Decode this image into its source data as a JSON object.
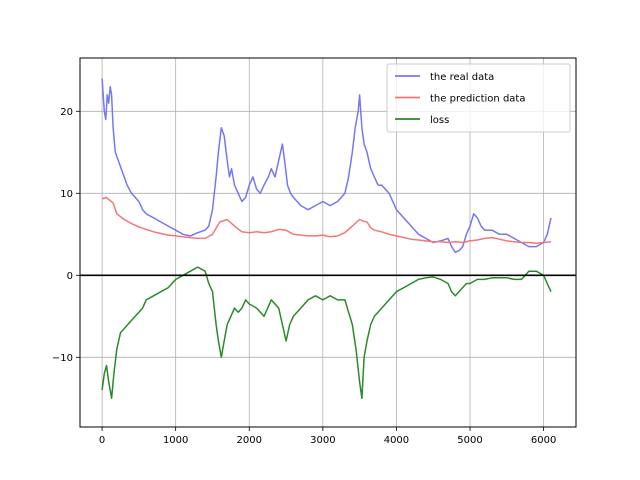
{
  "chart_data": {
    "type": "line",
    "title": "",
    "xlabel": "",
    "ylabel": "",
    "xlim": [
      -300,
      6440
    ],
    "ylim": [
      -18.5,
      26.5
    ],
    "xticks": [
      0,
      1000,
      2000,
      3000,
      4000,
      5000,
      6000
    ],
    "yticks": [
      -10,
      0,
      10,
      20
    ],
    "grid": true,
    "legend_position": "upper right",
    "hline": {
      "y": 0,
      "color": "#000000"
    },
    "series": [
      {
        "name": "the real data",
        "color": "#7777f4",
        "x": [
          0,
          15,
          30,
          50,
          70,
          90,
          110,
          130,
          150,
          180,
          220,
          260,
          300,
          340,
          400,
          450,
          500,
          550,
          600,
          700,
          800,
          900,
          1000,
          1100,
          1200,
          1300,
          1400,
          1450,
          1500,
          1550,
          1580,
          1620,
          1660,
          1700,
          1730,
          1760,
          1800,
          1850,
          1900,
          1950,
          2000,
          2050,
          2100,
          2150,
          2200,
          2260,
          2300,
          2350,
          2400,
          2450,
          2480,
          2520,
          2560,
          2600,
          2700,
          2800,
          2900,
          3000,
          3100,
          3200,
          3300,
          3350,
          3400,
          3440,
          3480,
          3500,
          3530,
          3560,
          3600,
          3650,
          3700,
          3750,
          3800,
          3850,
          3900,
          3950,
          4000,
          4100,
          4200,
          4300,
          4400,
          4500,
          4600,
          4700,
          4750,
          4800,
          4850,
          4900,
          4950,
          5000,
          5050,
          5100,
          5150,
          5200,
          5300,
          5400,
          5500,
          5600,
          5700,
          5800,
          5900,
          6000,
          6050,
          6100
        ],
        "y": [
          24,
          22,
          20,
          19,
          22,
          21,
          23,
          22,
          18,
          15,
          14,
          13,
          12,
          11,
          10,
          9.5,
          9,
          8,
          7.5,
          7,
          6.5,
          6,
          5.5,
          5,
          4.8,
          5.2,
          5.5,
          6,
          8,
          12,
          15,
          18,
          17,
          14,
          12,
          13,
          11,
          10,
          9,
          9.5,
          11,
          12,
          10.5,
          10,
          11,
          12,
          13,
          12,
          14,
          16,
          14,
          11,
          10,
          9.5,
          8.5,
          8,
          8.5,
          9,
          8.5,
          9,
          10,
          12,
          15,
          18,
          20,
          22,
          18,
          16,
          15,
          13,
          12,
          11,
          11,
          10.5,
          10,
          9,
          8,
          7,
          6,
          5,
          4.5,
          4,
          4.2,
          4.5,
          3.5,
          2.8,
          3,
          3.5,
          5,
          6,
          7.5,
          7,
          6,
          5.5,
          5.5,
          5,
          5,
          4.5,
          4,
          3.5,
          3.5,
          4,
          5,
          7
        ]
      },
      {
        "name": "the prediction data",
        "color": "#f47777",
        "x": [
          0,
          50,
          100,
          150,
          200,
          300,
          400,
          500,
          600,
          700,
          800,
          900,
          1000,
          1100,
          1200,
          1300,
          1400,
          1500,
          1600,
          1700,
          1800,
          1900,
          2000,
          2100,
          2200,
          2300,
          2400,
          2500,
          2600,
          2700,
          2800,
          2900,
          3000,
          3100,
          3200,
          3300,
          3400,
          3500,
          3550,
          3600,
          3650,
          3700,
          3800,
          3900,
          4000,
          4100,
          4200,
          4300,
          4400,
          4500,
          4600,
          4700,
          4800,
          4900,
          5000,
          5100,
          5200,
          5300,
          5400,
          5500,
          5600,
          5700,
          5800,
          5900,
          6000,
          6100
        ],
        "y": [
          9.3,
          9.5,
          9.2,
          8.8,
          7.5,
          6.8,
          6.3,
          5.9,
          5.6,
          5.3,
          5.1,
          4.9,
          4.8,
          4.7,
          4.6,
          4.5,
          4.5,
          5,
          6.5,
          6.8,
          6,
          5.3,
          5.2,
          5.3,
          5.2,
          5.3,
          5.6,
          5.5,
          5,
          4.9,
          4.8,
          4.8,
          4.9,
          4.7,
          4.8,
          5.2,
          6,
          6.8,
          6.6,
          6.5,
          5.8,
          5.5,
          5.3,
          5,
          4.8,
          4.6,
          4.4,
          4.3,
          4.2,
          4.1,
          4.1,
          4,
          4.1,
          4,
          4.2,
          4.3,
          4.5,
          4.6,
          4.4,
          4.2,
          4.1,
          4,
          4,
          3.9,
          4,
          4.1
        ]
      },
      {
        "name": "loss",
        "color": "#2a8a2a",
        "x": [
          0,
          30,
          60,
          90,
          110,
          130,
          160,
          200,
          250,
          300,
          350,
          400,
          450,
          500,
          550,
          600,
          700,
          800,
          900,
          1000,
          1100,
          1200,
          1300,
          1400,
          1450,
          1500,
          1550,
          1580,
          1620,
          1660,
          1700,
          1750,
          1800,
          1850,
          1900,
          1950,
          2000,
          2100,
          2200,
          2300,
          2400,
          2450,
          2500,
          2550,
          2600,
          2700,
          2800,
          2900,
          3000,
          3100,
          3200,
          3300,
          3350,
          3400,
          3450,
          3500,
          3530,
          3560,
          3600,
          3650,
          3700,
          3750,
          3800,
          3850,
          3900,
          3950,
          4000,
          4100,
          4200,
          4300,
          4400,
          4500,
          4600,
          4700,
          4750,
          4800,
          4850,
          4900,
          4950,
          5000,
          5100,
          5200,
          5300,
          5400,
          5500,
          5600,
          5700,
          5800,
          5900,
          6000,
          6050,
          6100
        ],
        "y": [
          -14,
          -12,
          -11,
          -13,
          -14,
          -15,
          -12,
          -9,
          -7,
          -6.5,
          -6,
          -5.5,
          -5,
          -4.5,
          -4,
          -3,
          -2.5,
          -2,
          -1.5,
          -0.5,
          0,
          0.5,
          1,
          0.5,
          -1,
          -2,
          -6,
          -8,
          -10,
          -8,
          -6,
          -5,
          -4,
          -4.5,
          -4,
          -3,
          -3.5,
          -4,
          -5,
          -3,
          -4,
          -6,
          -8,
          -6,
          -5,
          -4,
          -3,
          -2.5,
          -3,
          -2.5,
          -3,
          -3,
          -4.5,
          -6,
          -9,
          -13,
          -15,
          -10,
          -8,
          -6,
          -5,
          -4.5,
          -4,
          -3.5,
          -3,
          -2.5,
          -2,
          -1.5,
          -1,
          -0.5,
          -0.3,
          -0.2,
          -0.5,
          -1,
          -2,
          -2.5,
          -2,
          -1.5,
          -1,
          -1,
          -0.5,
          -0.5,
          -0.3,
          -0.3,
          -0.3,
          -0.5,
          -0.5,
          0.5,
          0.5,
          0,
          -1,
          -2
        ]
      }
    ]
  }
}
